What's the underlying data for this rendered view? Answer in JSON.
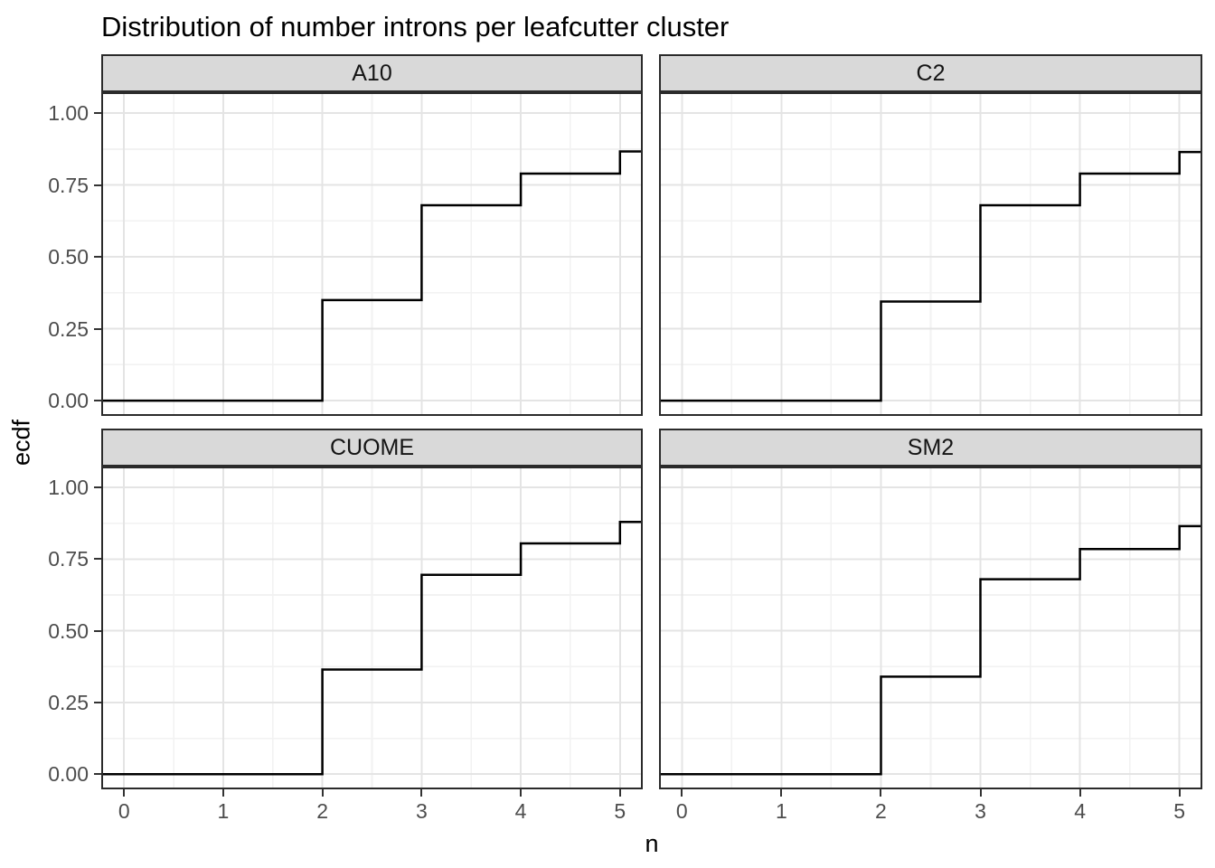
{
  "chart_data": {
    "type": "line",
    "subtype": "step-ecdf-faceted",
    "title": "Distribution of number introns per leafcutter cluster",
    "xlabel": "n",
    "ylabel": "ecdf",
    "x_ticks": [
      "0",
      "1",
      "2",
      "3",
      "4",
      "5"
    ],
    "y_ticks": [
      "0.00",
      "0.25",
      "0.50",
      "0.75",
      "1.00"
    ],
    "x_tick_values": [
      0,
      1,
      2,
      3,
      4,
      5
    ],
    "y_tick_values": [
      0,
      0.25,
      0.5,
      0.75,
      1
    ],
    "xlim": [
      -0.23,
      5.23
    ],
    "ylim": [
      -0.053,
      1.073
    ],
    "grid": {
      "major_x": [
        0,
        1,
        2,
        3,
        4,
        5
      ],
      "minor_x": [
        0.5,
        1.5,
        2.5,
        3.5,
        4.5
      ],
      "major_y": [
        0,
        0.25,
        0.5,
        0.75,
        1
      ],
      "minor_y": [
        0.125,
        0.375,
        0.625,
        0.875
      ]
    },
    "legend": "none",
    "facets": [
      {
        "label": "A10",
        "ecdf_steps": [
          {
            "x": 2,
            "ecdf": 0.35
          },
          {
            "x": 3,
            "ecdf": 0.68
          },
          {
            "x": 4,
            "ecdf": 0.79
          },
          {
            "x": 5,
            "ecdf": 0.867
          }
        ]
      },
      {
        "label": "C2",
        "ecdf_steps": [
          {
            "x": 2,
            "ecdf": 0.345
          },
          {
            "x": 3,
            "ecdf": 0.68
          },
          {
            "x": 4,
            "ecdf": 0.79
          },
          {
            "x": 5,
            "ecdf": 0.865
          }
        ]
      },
      {
        "label": "CUOME",
        "ecdf_steps": [
          {
            "x": 2,
            "ecdf": 0.365
          },
          {
            "x": 3,
            "ecdf": 0.695
          },
          {
            "x": 4,
            "ecdf": 0.805
          },
          {
            "x": 5,
            "ecdf": 0.88
          }
        ]
      },
      {
        "label": "SM2",
        "ecdf_steps": [
          {
            "x": 2,
            "ecdf": 0.34
          },
          {
            "x": 3,
            "ecdf": 0.68
          },
          {
            "x": 4,
            "ecdf": 0.785
          },
          {
            "x": 5,
            "ecdf": 0.865
          }
        ]
      }
    ],
    "colors": {
      "line": "#000000",
      "strip_bg": "#D9D9D9",
      "panel_border": "#2B2B2B",
      "grid_major": "#E4E4E4",
      "grid_minor": "#F2F2F2",
      "tick_label": "#4D4D4D",
      "tick_mark": "#333333",
      "text": "#000000",
      "background": "#FFFFFF"
    }
  }
}
